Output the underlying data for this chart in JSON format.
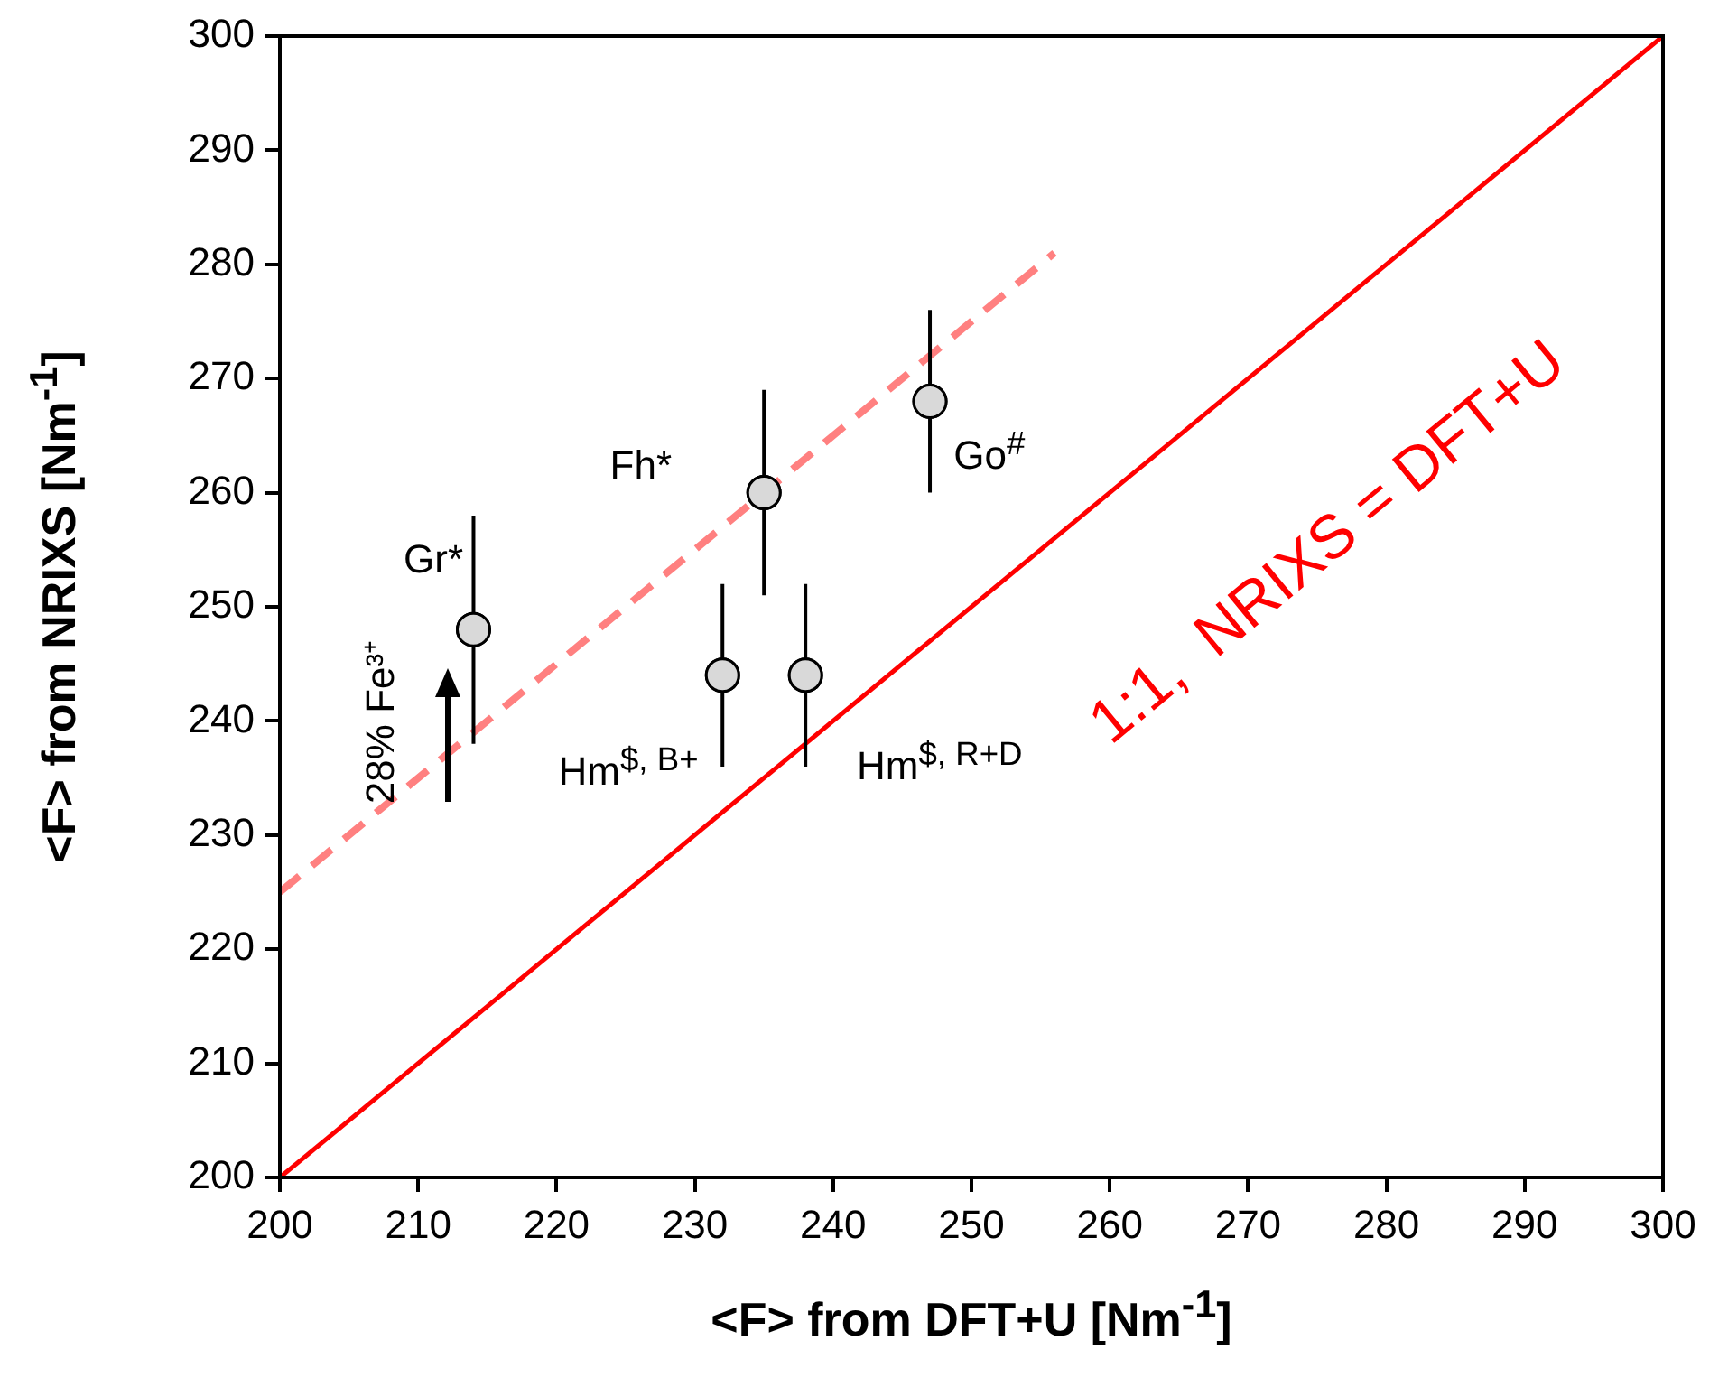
{
  "chart_data": {
    "type": "scatter",
    "xlabel": "<F> from DFT+U [Nm$^{-1}$]",
    "ylabel": "<F> from NRIXS [Nm$^{-1}$]",
    "xlim": [
      200,
      300
    ],
    "xticks": [
      200,
      210,
      220,
      230,
      240,
      250,
      260,
      270,
      280,
      290,
      300
    ],
    "ylim": [
      200,
      300
    ],
    "yticks": [
      200,
      210,
      220,
      230,
      240,
      250,
      260,
      270,
      280,
      290,
      300
    ],
    "legend": false,
    "series": [
      {
        "marker": "circle",
        "color": "#d9d9d9",
        "x": [
          214,
          232,
          235,
          238,
          247
        ],
        "values": [
          248,
          244,
          260,
          244,
          268
        ],
        "errors": [
          10,
          8,
          9,
          8,
          8
        ]
      },
      {
        "type": "line",
        "marker": "none",
        "color": "#ff8080",
        "line_style": "dashed",
        "x": [
          200,
          256
        ],
        "values": [
          225,
          281
        ]
      },
      {
        "type": "line",
        "marker": "none",
        "color": "#ff0000",
        "line_style": "solid",
        "x": [
          200,
          300
        ],
        "values": [
          200,
          300
        ]
      }
    ],
    "annotations": [
      "Gr*",
      "Fh*",
      "Go$^{#}$",
      "Hm$^{$, B+}$",
      "Hm$^{$, R+D}$",
      "28% Fe³⁺",
      "1:1,  NRIXS = DFT+U"
    ]
  }
}
